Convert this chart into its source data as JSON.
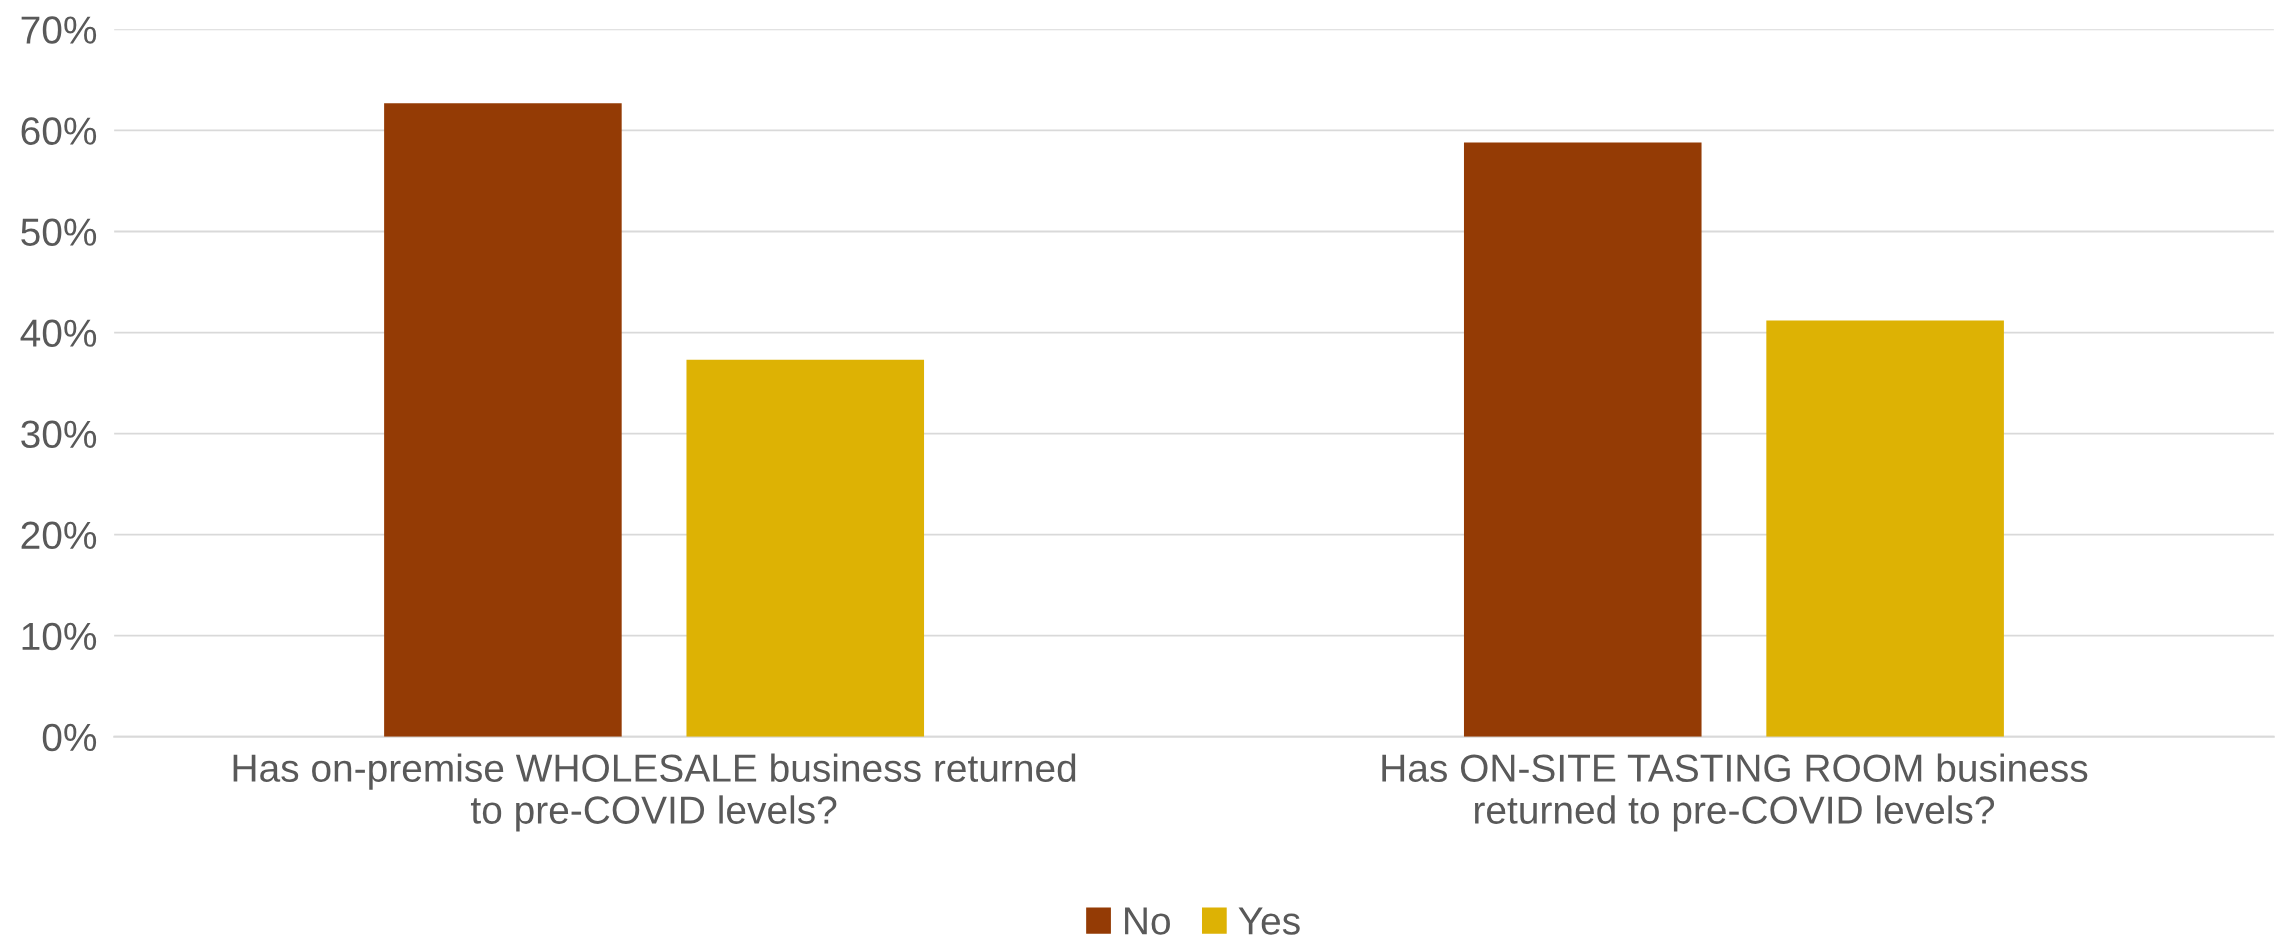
{
  "chart_data": {
    "type": "bar",
    "categories": [
      "Has on-premise WHOLESALE business returned\nto pre-COVID levels?",
      "Has ON-SITE TASTING ROOM business\nreturned to pre-COVID levels?"
    ],
    "series": [
      {
        "name": "No",
        "color": "#943b05",
        "values": [
          62.7,
          58.8
        ]
      },
      {
        "name": "Yes",
        "color": "#ddb204",
        "values": [
          37.3,
          41.2
        ]
      }
    ],
    "ylim": [
      0,
      70
    ],
    "yticks": [
      {
        "value": 0,
        "label": "0%"
      },
      {
        "value": 10,
        "label": "10%"
      },
      {
        "value": 20,
        "label": "20%"
      },
      {
        "value": 30,
        "label": "30%"
      },
      {
        "value": 40,
        "label": "40%"
      },
      {
        "value": 50,
        "label": "50%"
      },
      {
        "value": 60,
        "label": "60%"
      },
      {
        "value": 70,
        "label": "70%"
      }
    ],
    "grid": "y",
    "legend": "bottom"
  }
}
